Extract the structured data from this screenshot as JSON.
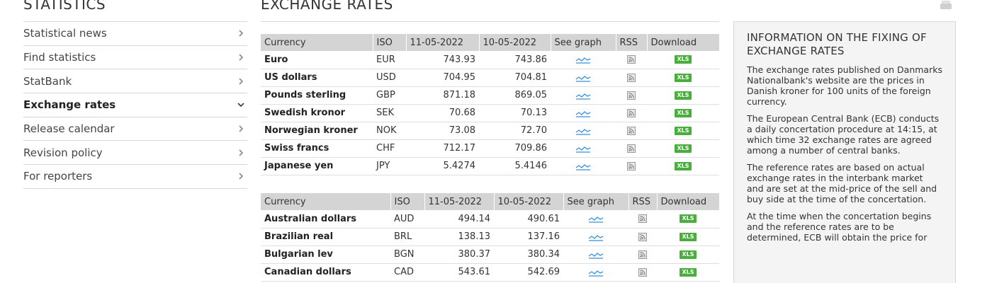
{
  "left_nav": {
    "heading": "STATISTICS",
    "items": [
      {
        "label": "Statistical news",
        "active": false
      },
      {
        "label": "Find statistics",
        "active": false
      },
      {
        "label": "StatBank",
        "active": false
      },
      {
        "label": "Exchange rates",
        "active": true
      },
      {
        "label": "Release calendar",
        "active": false
      },
      {
        "label": "Revision policy",
        "active": false
      },
      {
        "label": "For reporters",
        "active": false
      }
    ]
  },
  "main": {
    "heading": "EXCHANGE RATES",
    "table1": {
      "headers": [
        "Currency",
        "ISO",
        "11-05-2022",
        "10-05-2022",
        "See graph",
        "RSS",
        "Download"
      ],
      "rows": [
        {
          "currency": "Euro",
          "iso": "EUR",
          "d1": "743.93",
          "d2": "743.86"
        },
        {
          "currency": "US dollars",
          "iso": "USD",
          "d1": "704.95",
          "d2": "704.81"
        },
        {
          "currency": "Pounds sterling",
          "iso": "GBP",
          "d1": "871.18",
          "d2": "869.05"
        },
        {
          "currency": "Swedish kronor",
          "iso": "SEK",
          "d1": "70.68",
          "d2": "70.13"
        },
        {
          "currency": "Norwegian kroner",
          "iso": "NOK",
          "d1": "73.08",
          "d2": "72.70"
        },
        {
          "currency": "Swiss francs",
          "iso": "CHF",
          "d1": "712.17",
          "d2": "709.86"
        },
        {
          "currency": "Japanese yen",
          "iso": "JPY",
          "d1": "5.4274",
          "d2": "5.4146"
        }
      ]
    },
    "table2": {
      "headers": [
        "Currency",
        "ISO",
        "11-05-2022",
        "10-05-2022",
        "See graph",
        "RSS",
        "Download"
      ],
      "rows": [
        {
          "currency": "Australian dollars",
          "iso": "AUD",
          "d1": "494.14",
          "d2": "490.61"
        },
        {
          "currency": "Brazilian real",
          "iso": "BRL",
          "d1": "138.13",
          "d2": "137.16"
        },
        {
          "currency": "Bulgarian lev",
          "iso": "BGN",
          "d1": "380.37",
          "d2": "380.34"
        },
        {
          "currency": "Canadian dollars",
          "iso": "CAD",
          "d1": "543.61",
          "d2": "542.69"
        }
      ]
    },
    "download_label": "XLS"
  },
  "info_panel": {
    "title": "INFORMATION ON THE FIXING OF EXCHANGE RATES",
    "paragraphs": [
      "The exchange rates published on Danmarks Nationalbank's website are the prices in Danish kroner for 100 units of the foreign currency.",
      "The European Central Bank (ECB) conducts a daily concertation procedure at 14:15, at which time 32 exchange rates are agreed among a number of central banks.",
      "The reference rates are based on actual exchange rates in the interbank market and are set at the mid-price of the sell and buy side at the time of the concertation.",
      "At the time when the concertation begins and the reference rates are to be determined, ECB will obtain the price for"
    ]
  },
  "colors": {
    "header_bg": "#d4d4d4",
    "xls_green": "#4aae3c",
    "graph_blue": "#3a8fd6",
    "info_bg": "#f4f4f4"
  }
}
